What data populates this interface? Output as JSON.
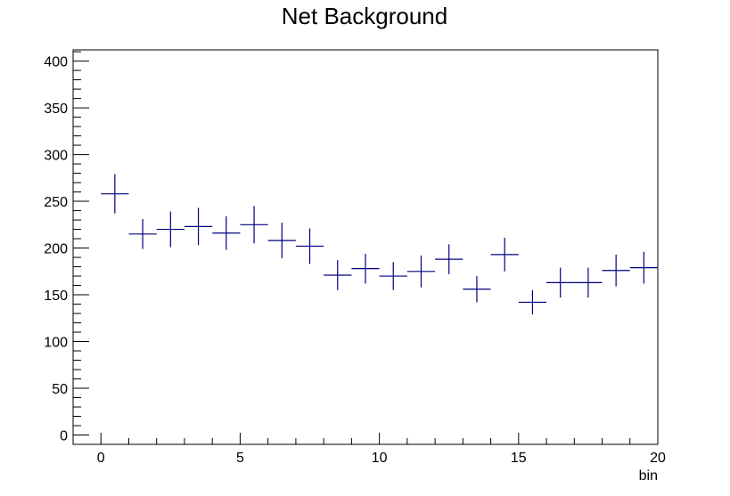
{
  "chart_data": {
    "type": "scatter",
    "title": "Net Background",
    "xlabel": "bin",
    "ylabel": "",
    "xlim": [
      -1,
      20
    ],
    "ylim": [
      -10,
      412
    ],
    "grid": false,
    "legend": "none",
    "marker_color": "#00007f",
    "x_ticks": [
      0,
      5,
      10,
      15,
      20
    ],
    "x_tick_labels": [
      "0",
      "5",
      "10",
      "15",
      "20"
    ],
    "y_ticks": [
      0,
      50,
      100,
      150,
      200,
      250,
      300,
      350,
      400
    ],
    "y_tick_labels": [
      "0",
      "50",
      "100",
      "150",
      "200",
      "250",
      "300",
      "350",
      "400"
    ],
    "points": [
      {
        "x": 0.5,
        "y": 258,
        "xerr": 0.5,
        "yerr": 21
      },
      {
        "x": 1.5,
        "y": 215,
        "xerr": 0.5,
        "yerr": 16
      },
      {
        "x": 2.5,
        "y": 220,
        "xerr": 0.5,
        "yerr": 19
      },
      {
        "x": 3.5,
        "y": 223,
        "xerr": 0.5,
        "yerr": 20
      },
      {
        "x": 4.5,
        "y": 216,
        "xerr": 0.5,
        "yerr": 18
      },
      {
        "x": 5.5,
        "y": 225,
        "xerr": 0.5,
        "yerr": 20
      },
      {
        "x": 6.5,
        "y": 208,
        "xerr": 0.5,
        "yerr": 19
      },
      {
        "x": 7.5,
        "y": 202,
        "xerr": 0.5,
        "yerr": 19
      },
      {
        "x": 8.5,
        "y": 171,
        "xerr": 0.5,
        "yerr": 16
      },
      {
        "x": 9.5,
        "y": 178,
        "xerr": 0.5,
        "yerr": 16
      },
      {
        "x": 10.5,
        "y": 170,
        "xerr": 0.5,
        "yerr": 15
      },
      {
        "x": 11.5,
        "y": 175,
        "xerr": 0.5,
        "yerr": 17
      },
      {
        "x": 12.5,
        "y": 188,
        "xerr": 0.5,
        "yerr": 16
      },
      {
        "x": 13.5,
        "y": 156,
        "xerr": 0.5,
        "yerr": 14
      },
      {
        "x": 14.5,
        "y": 193,
        "xerr": 0.5,
        "yerr": 18
      },
      {
        "x": 15.5,
        "y": 142,
        "xerr": 0.5,
        "yerr": 13
      },
      {
        "x": 16.5,
        "y": 163,
        "xerr": 0.5,
        "yerr": 16
      },
      {
        "x": 17.5,
        "y": 163,
        "xerr": 0.5,
        "yerr": 16
      },
      {
        "x": 18.5,
        "y": 176,
        "xerr": 0.5,
        "yerr": 17
      },
      {
        "x": 19.5,
        "y": 179,
        "xerr": 0.5,
        "yerr": 17
      }
    ]
  }
}
